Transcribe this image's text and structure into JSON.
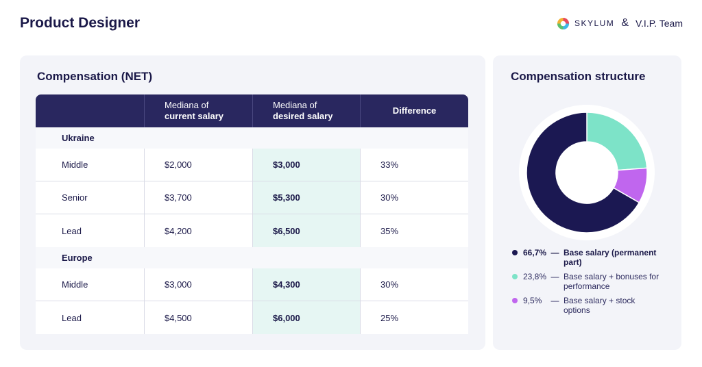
{
  "page": {
    "title": "Product Designer"
  },
  "brands": {
    "skylum": "SKYLUM",
    "ampersand": "&",
    "vip": "V.I.P. Team"
  },
  "compensation": {
    "title": "Compensation (NET)",
    "headers": {
      "current_line1": "Mediana of",
      "current_line2": "current salary",
      "desired_line1": "Mediana of",
      "desired_line2": "desired salary",
      "difference": "Difference"
    },
    "groups": [
      {
        "name": "Ukraine",
        "rows": [
          {
            "level": "Middle",
            "current": "$2,000",
            "desired": "$3,000",
            "difference": "33%"
          },
          {
            "level": "Senior",
            "current": "$3,700",
            "desired": "$5,300",
            "difference": "30%"
          },
          {
            "level": "Lead",
            "current": "$4,200",
            "desired": "$6,500",
            "difference": "35%"
          }
        ]
      },
      {
        "name": "Europe",
        "rows": [
          {
            "level": "Middle",
            "current": "$3,000",
            "desired": "$4,300",
            "difference": "30%"
          },
          {
            "level": "Lead",
            "current": "$4,500",
            "desired": "$6,000",
            "difference": "25%"
          }
        ]
      }
    ]
  },
  "structure": {
    "title": "Compensation structure",
    "legend": [
      {
        "pct": "66,7%",
        "dash": "—",
        "text": "Base salary (permanent part)"
      },
      {
        "pct": "23,8%",
        "dash": "—",
        "text": "Base salary + bonuses for performance"
      },
      {
        "pct": "9,5%",
        "dash": "—",
        "text": "Base salary + stock options"
      }
    ]
  },
  "chart_data": {
    "type": "pie",
    "labels": [
      "Base salary (permanent part)",
      "Base salary + bonuses for performance",
      "Base salary + stock options"
    ],
    "values": [
      66.7,
      23.8,
      9.5
    ],
    "colors": [
      "#1b1852",
      "#7de3c8",
      "#c066ee"
    ],
    "title": "Compensation structure",
    "donut": true
  },
  "colors": {
    "navy": "#29275f",
    "mint_highlight": "#e6f6f3",
    "panel_bg": "#f3f4f9"
  }
}
